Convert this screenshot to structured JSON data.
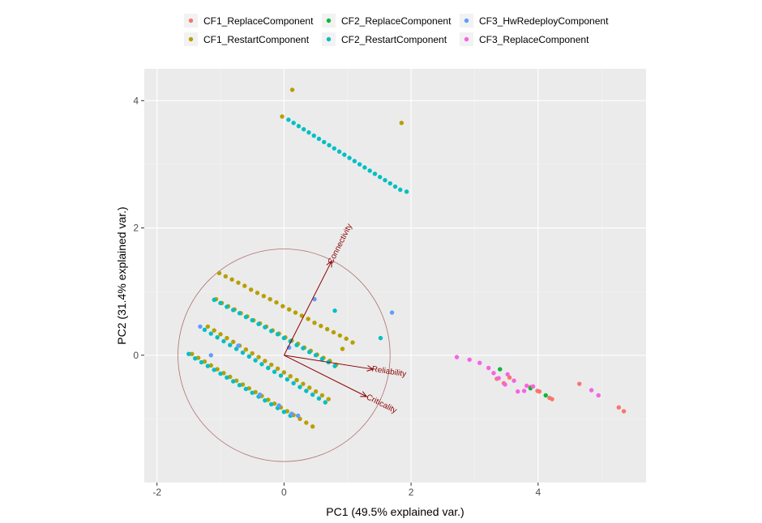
{
  "chart_data": {
    "type": "scatter",
    "title": "",
    "xlabel": "PC1 (49.5% explained var.)",
    "ylabel": "PC2 (31.4% explained var.)",
    "xlim": [
      -2.2,
      5.7
    ],
    "ylim": [
      -2.0,
      4.5
    ],
    "xticks": [
      -2,
      0,
      2,
      4
    ],
    "yticks": [
      0,
      2,
      4
    ],
    "grid": true,
    "legend_position": "top",
    "background_color": "#ebebeb",
    "series": [
      {
        "name": "CF1_ReplaceComponent",
        "color": "#F8766D",
        "points": [
          [
            3.35,
            -0.37
          ],
          [
            3.46,
            -0.44
          ],
          [
            3.55,
            -0.35
          ],
          [
            3.88,
            -0.5
          ],
          [
            3.99,
            -0.56
          ],
          [
            4.02,
            -0.57
          ],
          [
            4.18,
            -0.67
          ],
          [
            4.22,
            -0.69
          ],
          [
            4.65,
            -0.45
          ],
          [
            5.27,
            -0.82
          ],
          [
            5.35,
            -0.88
          ]
        ]
      },
      {
        "name": "CF1_RestartComponent",
        "color": "#B79F00",
        "points": [
          [
            0.13,
            4.17
          ],
          [
            1.85,
            3.65
          ],
          [
            -0.03,
            3.75
          ],
          [
            -1.02,
            1.29
          ],
          [
            -0.92,
            1.24
          ],
          [
            -0.82,
            1.19
          ],
          [
            -0.72,
            1.14
          ],
          [
            -0.62,
            1.09
          ],
          [
            -0.52,
            1.03
          ],
          [
            -0.42,
            0.98
          ],
          [
            -0.32,
            0.93
          ],
          [
            -0.22,
            0.88
          ],
          [
            -0.12,
            0.83
          ],
          [
            -0.02,
            0.77
          ],
          [
            0.08,
            0.72
          ],
          [
            0.18,
            0.67
          ],
          [
            0.28,
            0.62
          ],
          [
            0.38,
            0.57
          ],
          [
            0.48,
            0.51
          ],
          [
            0.58,
            0.46
          ],
          [
            0.68,
            0.41
          ],
          [
            0.78,
            0.36
          ],
          [
            0.88,
            0.31
          ],
          [
            0.98,
            0.26
          ],
          [
            1.08,
            0.2
          ],
          [
            -1.07,
            0.88
          ],
          [
            -0.98,
            0.82
          ],
          [
            -0.88,
            0.77
          ],
          [
            -0.78,
            0.72
          ],
          [
            -0.68,
            0.66
          ],
          [
            -0.58,
            0.61
          ],
          [
            -0.48,
            0.55
          ],
          [
            -0.38,
            0.5
          ],
          [
            -0.28,
            0.45
          ],
          [
            -0.18,
            0.39
          ],
          [
            -0.08,
            0.34
          ],
          [
            0.02,
            0.28
          ],
          [
            0.12,
            0.23
          ],
          [
            0.22,
            0.18
          ],
          [
            0.32,
            0.12
          ],
          [
            0.42,
            0.07
          ],
          [
            0.52,
            0.01
          ],
          [
            0.62,
            -0.04
          ],
          [
            0.72,
            -0.09
          ],
          [
            0.82,
            -0.15
          ],
          [
            0.92,
            0.1
          ],
          [
            -1.2,
            0.45
          ],
          [
            -1.1,
            0.39
          ],
          [
            -1.0,
            0.33
          ],
          [
            -0.9,
            0.27
          ],
          [
            -0.8,
            0.21
          ],
          [
            -0.7,
            0.15
          ],
          [
            -0.6,
            0.09
          ],
          [
            -0.5,
            0.03
          ],
          [
            -0.4,
            -0.03
          ],
          [
            -0.3,
            -0.09
          ],
          [
            -0.2,
            -0.15
          ],
          [
            -0.1,
            -0.21
          ],
          [
            0.0,
            -0.27
          ],
          [
            0.1,
            -0.33
          ],
          [
            0.2,
            -0.39
          ],
          [
            0.3,
            -0.45
          ],
          [
            0.4,
            -0.51
          ],
          [
            0.5,
            -0.57
          ],
          [
            0.6,
            -0.63
          ],
          [
            0.7,
            -0.69
          ],
          [
            -1.45,
            0.02
          ],
          [
            -1.35,
            -0.04
          ],
          [
            -1.25,
            -0.1
          ],
          [
            -1.15,
            -0.16
          ],
          [
            -1.05,
            -0.22
          ],
          [
            -0.95,
            -0.28
          ],
          [
            -0.85,
            -0.34
          ],
          [
            -0.75,
            -0.4
          ],
          [
            -0.65,
            -0.46
          ],
          [
            -0.55,
            -0.52
          ],
          [
            -0.45,
            -0.58
          ],
          [
            -0.35,
            -0.64
          ],
          [
            -0.25,
            -0.7
          ],
          [
            -0.15,
            -0.76
          ],
          [
            -0.05,
            -0.82
          ],
          [
            0.05,
            -0.88
          ],
          [
            0.15,
            -0.94
          ],
          [
            0.25,
            -1.0
          ],
          [
            0.35,
            -1.06
          ],
          [
            0.45,
            -1.12
          ]
        ]
      },
      {
        "name": "CF2_ReplaceComponent",
        "color": "#00BA38",
        "points": [
          [
            3.4,
            -0.22
          ],
          [
            3.88,
            -0.52
          ],
          [
            4.12,
            -0.63
          ]
        ]
      },
      {
        "name": "CF2_RestartComponent",
        "color": "#00BFC4",
        "points": [
          [
            0.07,
            3.7
          ],
          [
            0.15,
            3.65
          ],
          [
            0.23,
            3.6
          ],
          [
            0.31,
            3.55
          ],
          [
            0.39,
            3.5
          ],
          [
            0.47,
            3.45
          ],
          [
            0.55,
            3.4
          ],
          [
            0.63,
            3.35
          ],
          [
            0.71,
            3.3
          ],
          [
            0.79,
            3.25
          ],
          [
            0.87,
            3.2
          ],
          [
            0.95,
            3.15
          ],
          [
            1.03,
            3.1
          ],
          [
            1.11,
            3.05
          ],
          [
            1.19,
            3.0
          ],
          [
            1.27,
            2.95
          ],
          [
            1.35,
            2.9
          ],
          [
            1.43,
            2.85
          ],
          [
            1.51,
            2.8
          ],
          [
            1.59,
            2.75
          ],
          [
            1.67,
            2.7
          ],
          [
            1.75,
            2.65
          ],
          [
            1.83,
            2.6
          ],
          [
            1.93,
            2.57
          ],
          [
            -1.1,
            0.87
          ],
          [
            -1.0,
            0.82
          ],
          [
            -0.9,
            0.76
          ],
          [
            -0.8,
            0.71
          ],
          [
            -0.7,
            0.66
          ],
          [
            -0.6,
            0.6
          ],
          [
            -0.5,
            0.55
          ],
          [
            -0.4,
            0.49
          ],
          [
            -0.3,
            0.44
          ],
          [
            -0.2,
            0.38
          ],
          [
            -0.1,
            0.33
          ],
          [
            0.0,
            0.27
          ],
          [
            0.1,
            0.22
          ],
          [
            0.2,
            0.16
          ],
          [
            0.3,
            0.11
          ],
          [
            0.4,
            0.05
          ],
          [
            0.5,
            0.0
          ],
          [
            0.6,
            -0.06
          ],
          [
            0.7,
            -0.11
          ],
          [
            0.8,
            -0.17
          ],
          [
            0.8,
            0.7
          ],
          [
            1.52,
            0.27
          ],
          [
            -1.25,
            0.4
          ],
          [
            -1.15,
            0.34
          ],
          [
            -1.05,
            0.28
          ],
          [
            -0.95,
            0.22
          ],
          [
            -0.85,
            0.16
          ],
          [
            -0.75,
            0.1
          ],
          [
            -0.65,
            0.04
          ],
          [
            -0.55,
            -0.02
          ],
          [
            -0.45,
            -0.08
          ],
          [
            -0.35,
            -0.14
          ],
          [
            -0.25,
            -0.2
          ],
          [
            -0.15,
            -0.26
          ],
          [
            -0.05,
            -0.32
          ],
          [
            0.05,
            -0.38
          ],
          [
            0.15,
            -0.44
          ],
          [
            0.25,
            -0.5
          ],
          [
            0.35,
            -0.56
          ],
          [
            0.45,
            -0.62
          ],
          [
            0.55,
            -0.68
          ],
          [
            0.65,
            -0.74
          ],
          [
            -1.5,
            0.02
          ],
          [
            -1.4,
            -0.05
          ],
          [
            -1.3,
            -0.11
          ],
          [
            -1.2,
            -0.17
          ],
          [
            -1.1,
            -0.23
          ],
          [
            -1.0,
            -0.29
          ],
          [
            -0.9,
            -0.35
          ],
          [
            -0.8,
            -0.41
          ],
          [
            -0.7,
            -0.47
          ],
          [
            -0.6,
            -0.53
          ],
          [
            -0.5,
            -0.59
          ],
          [
            -0.4,
            -0.65
          ],
          [
            -0.3,
            -0.71
          ],
          [
            -0.2,
            -0.77
          ],
          [
            -0.1,
            -0.83
          ],
          [
            0.0,
            -0.89
          ],
          [
            0.1,
            -0.95
          ]
        ]
      },
      {
        "name": "CF3_HwRedeployComponent",
        "color": "#619CFF",
        "points": [
          [
            0.48,
            0.88
          ],
          [
            1.7,
            0.67
          ],
          [
            -1.32,
            0.45
          ],
          [
            -0.72,
            0.15
          ],
          [
            0.08,
            0.12
          ],
          [
            -1.15,
            0.0
          ],
          [
            -0.38,
            -0.62
          ],
          [
            0.12,
            -0.92
          ],
          [
            0.22,
            -0.95
          ],
          [
            -0.08,
            -0.79
          ]
        ]
      },
      {
        "name": "CF3_ReplaceComponent",
        "color": "#F564E3",
        "points": [
          [
            2.72,
            -0.03
          ],
          [
            2.92,
            -0.07
          ],
          [
            3.08,
            -0.12
          ],
          [
            3.22,
            -0.2
          ],
          [
            3.3,
            -0.28
          ],
          [
            3.38,
            -0.36
          ],
          [
            3.52,
            -0.3
          ],
          [
            3.48,
            -0.46
          ],
          [
            3.62,
            -0.4
          ],
          [
            3.68,
            -0.57
          ],
          [
            3.78,
            -0.56
          ],
          [
            3.82,
            -0.48
          ],
          [
            3.92,
            -0.49
          ],
          [
            4.84,
            -0.55
          ],
          [
            4.95,
            -0.63
          ]
        ]
      }
    ],
    "biplot": {
      "arrows": [
        {
          "label": "Connectivity",
          "x": 0.75,
          "y": 1.48
        },
        {
          "label": "Reliability",
          "x": 1.4,
          "y": -0.22
        },
        {
          "label": "Criticality",
          "x": 1.3,
          "y": -0.65
        }
      ],
      "circle_radius": 1.67,
      "color": "#8B0000"
    }
  }
}
